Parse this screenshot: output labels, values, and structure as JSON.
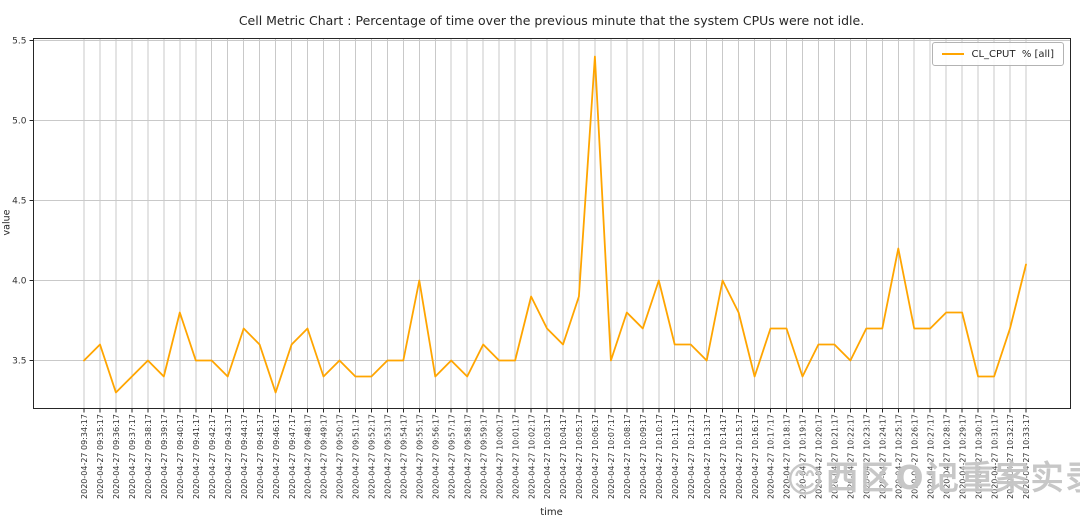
{
  "title": "Cell Metric Chart : Percentage of time over the previous minute that the system CPUs were not idle.",
  "legend": {
    "label": "CL_CPUT  % [all]"
  },
  "watermark": {
    "emoji": "😊",
    "text": "西区O记重案实录"
  },
  "colors": {
    "line": "#ffa500",
    "grid": "#c9c9c9",
    "spine": "#262626",
    "tick": "#262626",
    "tick_label": "#333333",
    "title_text": "#262626"
  },
  "chart_data": {
    "type": "line",
    "title": "Cell Metric Chart : Percentage of time over the previous minute that the system CPUs were not idle.",
    "xlabel": "time",
    "ylabel": "value",
    "legend_position": "upper right",
    "grid": true,
    "ylim": [
      3.2,
      5.5125
    ],
    "yticks": [
      3.5,
      4.0,
      4.5,
      5.0,
      5.5
    ],
    "ytick_labels": [
      "3.5",
      "4.0",
      "4.5",
      "5.0",
      "5.5"
    ],
    "x": [
      "2020-04-27 09:34:17",
      "2020-04-27 09:35:17",
      "2020-04-27 09:36:17",
      "2020-04-27 09:37:17",
      "2020-04-27 09:38:17",
      "2020-04-27 09:39:17",
      "2020-04-27 09:40:17",
      "2020-04-27 09:41:17",
      "2020-04-27 09:42:17",
      "2020-04-27 09:43:17",
      "2020-04-27 09:44:17",
      "2020-04-27 09:45:17",
      "2020-04-27 09:46:17",
      "2020-04-27 09:47:17",
      "2020-04-27 09:48:17",
      "2020-04-27 09:49:17",
      "2020-04-27 09:50:17",
      "2020-04-27 09:51:17",
      "2020-04-27 09:52:17",
      "2020-04-27 09:53:17",
      "2020-04-27 09:54:17",
      "2020-04-27 09:55:17",
      "2020-04-27 09:56:17",
      "2020-04-27 09:57:17",
      "2020-04-27 09:58:17",
      "2020-04-27 09:59:17",
      "2020-04-27 10:00:17",
      "2020-04-27 10:01:17",
      "2020-04-27 10:02:17",
      "2020-04-27 10:03:17",
      "2020-04-27 10:04:17",
      "2020-04-27 10:05:17",
      "2020-04-27 10:06:17",
      "2020-04-27 10:07:17",
      "2020-04-27 10:08:17",
      "2020-04-27 10:09:17",
      "2020-04-27 10:10:17",
      "2020-04-27 10:11:17",
      "2020-04-27 10:12:17",
      "2020-04-27 10:13:17",
      "2020-04-27 10:14:17",
      "2020-04-27 10:15:17",
      "2020-04-27 10:16:17",
      "2020-04-27 10:17:17",
      "2020-04-27 10:18:17",
      "2020-04-27 10:19:17",
      "2020-04-27 10:20:17",
      "2020-04-27 10:21:17",
      "2020-04-27 10:22:17",
      "2020-04-27 10:23:17",
      "2020-04-27 10:24:17",
      "2020-04-27 10:25:17",
      "2020-04-27 10:26:17",
      "2020-04-27 10:27:17",
      "2020-04-27 10:28:17",
      "2020-04-27 10:29:17",
      "2020-04-27 10:30:17",
      "2020-04-27 10:31:17",
      "2020-04-27 10:32:17",
      "2020-04-27 10:33:17"
    ],
    "series": [
      {
        "name": "CL_CPUT  % [all]",
        "color": "#ffa500",
        "values": [
          3.5,
          3.6,
          3.3,
          3.4,
          3.5,
          3.4,
          3.8,
          3.5,
          3.5,
          3.4,
          3.7,
          3.6,
          3.3,
          3.6,
          3.7,
          3.4,
          3.5,
          3.4,
          3.4,
          3.5,
          3.5,
          4.0,
          3.4,
          3.5,
          3.4,
          3.6,
          3.5,
          3.5,
          3.9,
          3.7,
          3.6,
          3.9,
          5.4,
          3.5,
          3.8,
          3.7,
          4.0,
          3.6,
          3.6,
          3.5,
          4.0,
          3.8,
          3.4,
          3.7,
          3.7,
          3.4,
          3.6,
          3.6,
          3.5,
          3.7,
          3.7,
          4.2,
          3.7,
          3.7,
          3.8,
          3.8,
          3.4,
          3.4,
          3.7,
          4.1
        ]
      }
    ]
  }
}
